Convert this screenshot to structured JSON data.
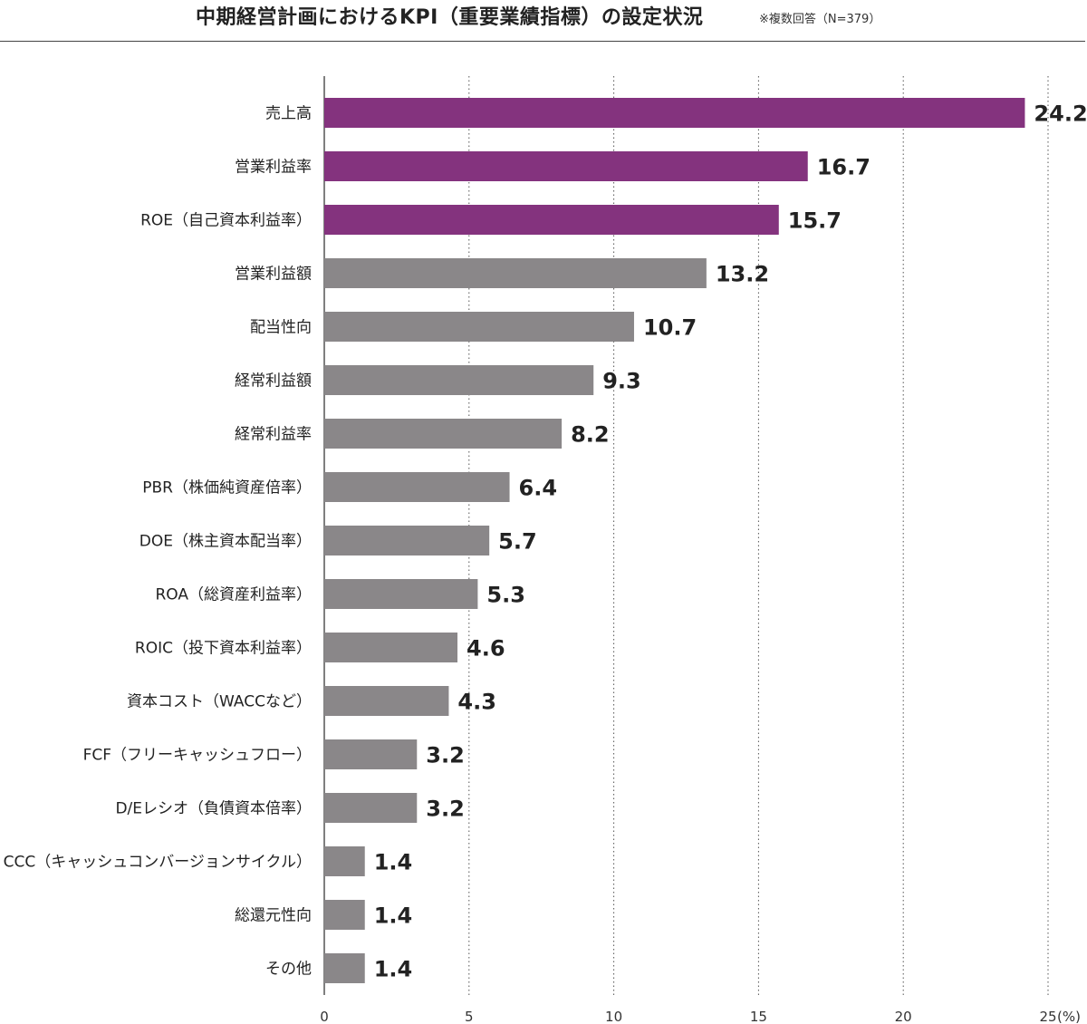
{
  "header": {
    "title": "中期経営計画におけるKPI（重要業績指標）の設定状況",
    "note": "※複数回答（N=379）"
  },
  "colors": {
    "highlight": "#84337e",
    "normal": "#8a8789",
    "grid": "#555555",
    "text": "#222222"
  },
  "chart_data": {
    "type": "bar",
    "orientation": "horizontal",
    "title": "中期経営計画におけるKPI（重要業績指標）の設定状況",
    "xlabel": "",
    "ylabel": "",
    "xlim": [
      0,
      25
    ],
    "x_ticks": [
      "0",
      "5",
      "10",
      "15",
      "20",
      "25"
    ],
    "x_unit": "(%)",
    "grid": "vertical-dotted",
    "highlight_count": 3,
    "categories": [
      "売上高",
      "営業利益率",
      "ROE（自己資本利益率）",
      "営業利益額",
      "配当性向",
      "経常利益額",
      "経常利益率",
      "PBR（株価純資産倍率）",
      "DOE（株主資本配当率）",
      "ROA（総資産利益率）",
      "ROIC（投下資本利益率）",
      "資本コスト（WACCなど）",
      "FCF（フリーキャッシュフロー）",
      "D/Eレシオ（負債資本倍率）",
      "CCC（キャッシュコンバージョンサイクル）",
      "総還元性向",
      "その他"
    ],
    "values": [
      24.2,
      16.7,
      15.7,
      13.2,
      10.7,
      9.3,
      8.2,
      6.4,
      5.7,
      5.3,
      4.6,
      4.3,
      3.2,
      3.2,
      1.4,
      1.4,
      1.4
    ],
    "value_labels": [
      "24.2",
      "16.7",
      "15.7",
      "13.2",
      "10.7",
      "9.3",
      "8.2",
      "6.4",
      "5.7",
      "5.3",
      "4.6",
      "4.3",
      "3.2",
      "3.2",
      "1.4",
      "1.4",
      "1.4"
    ]
  }
}
